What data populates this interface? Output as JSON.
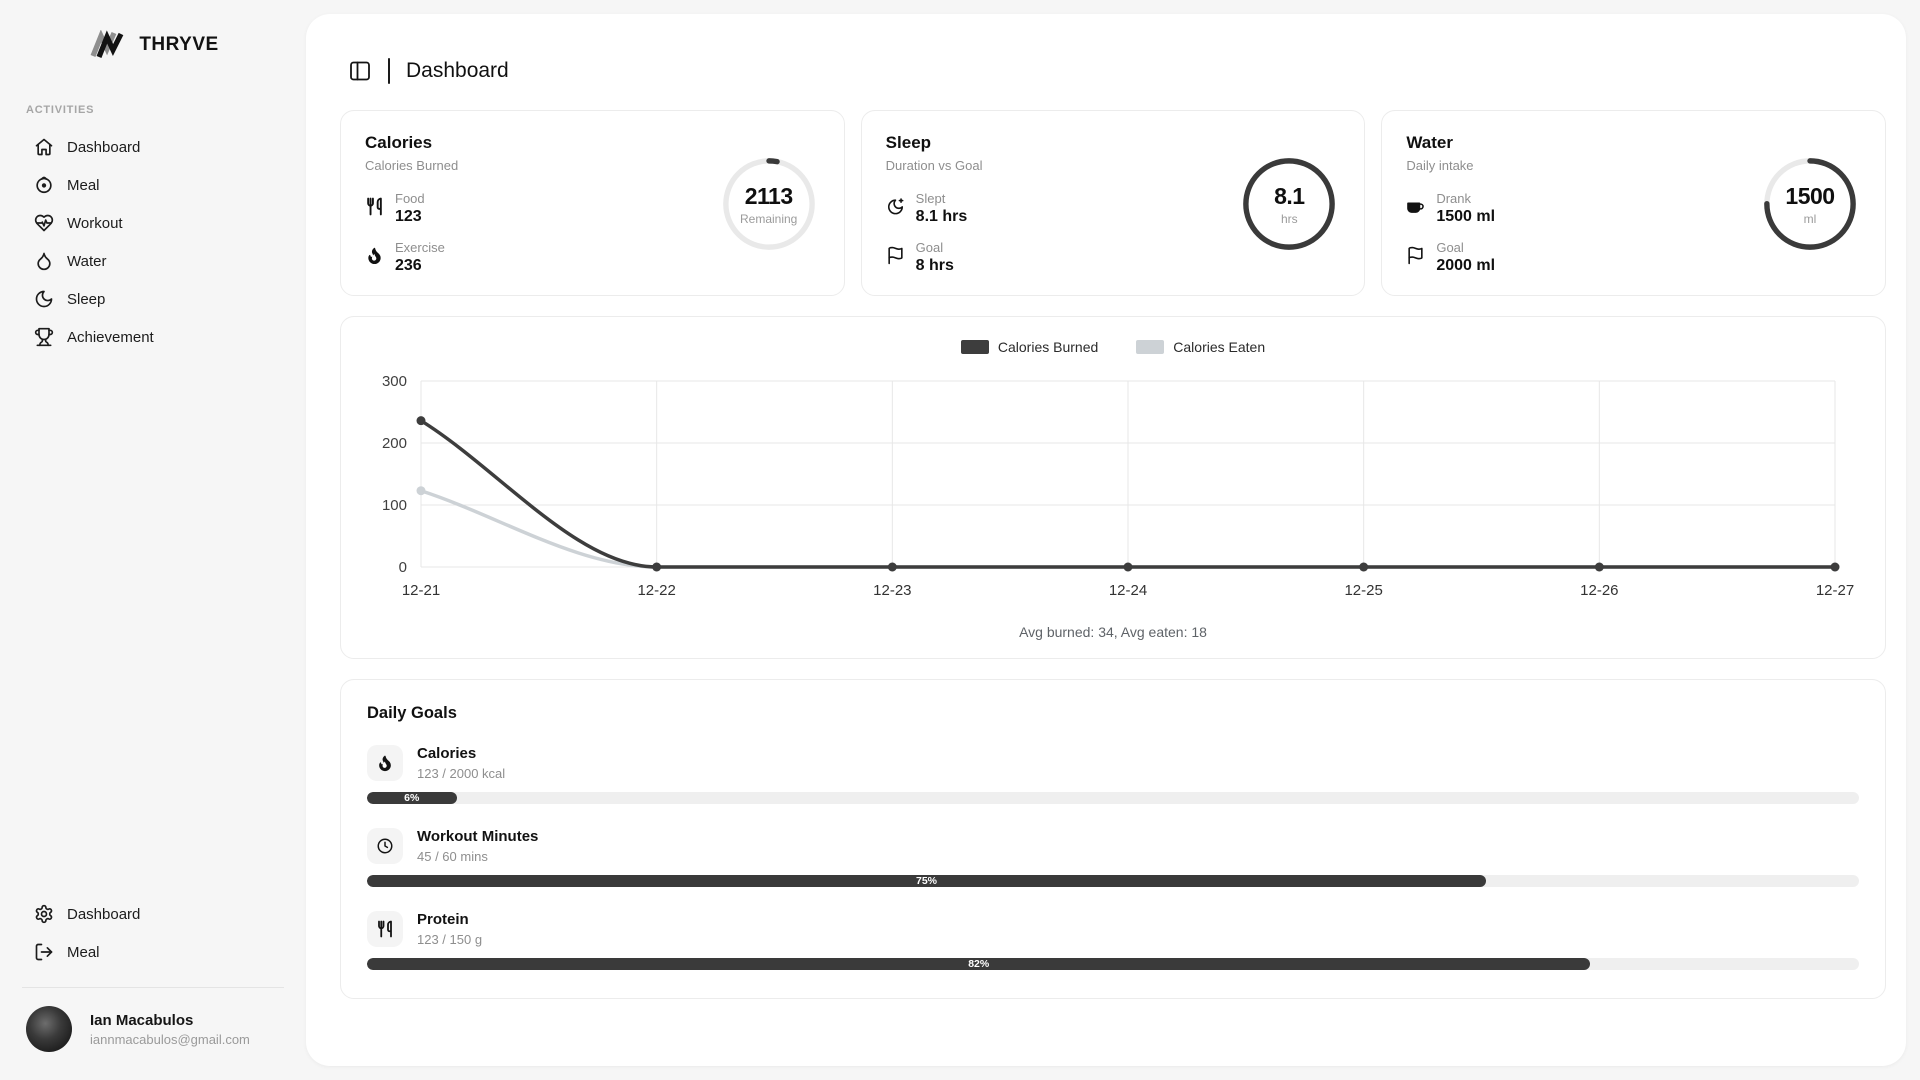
{
  "brand": {
    "name": "THRYVE"
  },
  "sidebar": {
    "section_label": "ACTIVITIES",
    "items": [
      {
        "id": "dashboard",
        "label": "Dashboard",
        "icon": "home"
      },
      {
        "id": "meal",
        "label": "Meal",
        "icon": "meal"
      },
      {
        "id": "workout",
        "label": "Workout",
        "icon": "heart-pulse"
      },
      {
        "id": "water",
        "label": "Water",
        "icon": "droplet"
      },
      {
        "id": "sleep",
        "label": "Sleep",
        "icon": "moon"
      },
      {
        "id": "achievement",
        "label": "Achievement",
        "icon": "trophy"
      }
    ],
    "footer_items": [
      {
        "id": "edit-preferences",
        "label": "Edit Preferences",
        "icon": "gear"
      },
      {
        "id": "logout",
        "label": "Logout",
        "icon": "logout"
      }
    ],
    "user": {
      "name": "Ian Macabulos",
      "email": "iannmacabulos@gmail.com"
    }
  },
  "header": {
    "title": "Dashboard"
  },
  "stat_cards": [
    {
      "id": "calories",
      "title": "Calories",
      "subtitle": "Calories Burned",
      "rows": [
        {
          "icon": "utensils",
          "label": "Food",
          "value": "123"
        },
        {
          "icon": "flame",
          "label": "Exercise",
          "value": "236"
        }
      ],
      "ring": {
        "value": "2113",
        "unit": "Remaining",
        "percent": 3
      }
    },
    {
      "id": "sleep",
      "title": "Sleep",
      "subtitle": "Duration vs Goal",
      "rows": [
        {
          "icon": "moon-star",
          "label": "Slept",
          "value": "8.1 hrs"
        },
        {
          "icon": "flag",
          "label": "Goal",
          "value": "8 hrs"
        }
      ],
      "ring": {
        "value": "8.1",
        "unit": "hrs",
        "percent": 100
      }
    },
    {
      "id": "water",
      "title": "Water",
      "subtitle": "Daily intake",
      "rows": [
        {
          "icon": "cup",
          "label": "Drank",
          "value": "1500 ml"
        },
        {
          "icon": "flag",
          "label": "Goal",
          "value": "2000 ml"
        }
      ],
      "ring": {
        "value": "1500",
        "unit": "ml",
        "percent": 75
      }
    }
  ],
  "chart_data": {
    "type": "line",
    "x": [
      "12-21",
      "12-22",
      "12-23",
      "12-24",
      "12-25",
      "12-26",
      "12-27"
    ],
    "series": [
      {
        "name": "Calories Burned",
        "color": "#3d3d3d",
        "values": [
          236,
          0,
          0,
          0,
          0,
          0,
          0
        ]
      },
      {
        "name": "Calories Eaten",
        "color": "#cdd2d6",
        "values": [
          123,
          0,
          0,
          0,
          0,
          0,
          0
        ]
      }
    ],
    "ylim": [
      0,
      300
    ],
    "yticks": [
      0,
      100,
      200,
      300
    ],
    "grid": true,
    "legend_position": "top",
    "caption": "Avg burned: 34, Avg eaten: 18"
  },
  "daily_goals": {
    "title": "Daily Goals",
    "goals": [
      {
        "icon": "flame",
        "label": "Calories",
        "progress_text": "123 / 2000 kcal",
        "percent": 6,
        "percent_label": "6%"
      },
      {
        "icon": "clock",
        "label": "Workout Minutes",
        "progress_text": "45 / 60 mins",
        "percent": 75,
        "percent_label": "75%"
      },
      {
        "icon": "utensils",
        "label": "Protein",
        "progress_text": "123 / 150 g",
        "percent": 82,
        "percent_label": "82%"
      }
    ]
  },
  "colors": {
    "accent_dark": "#3a3a3a",
    "series_light": "#cdd2d6",
    "ring_track": "#e9e9e9",
    "card_border": "#ececec",
    "grid_line": "#e7e7e7",
    "page_bg": "#f6f6f6"
  }
}
